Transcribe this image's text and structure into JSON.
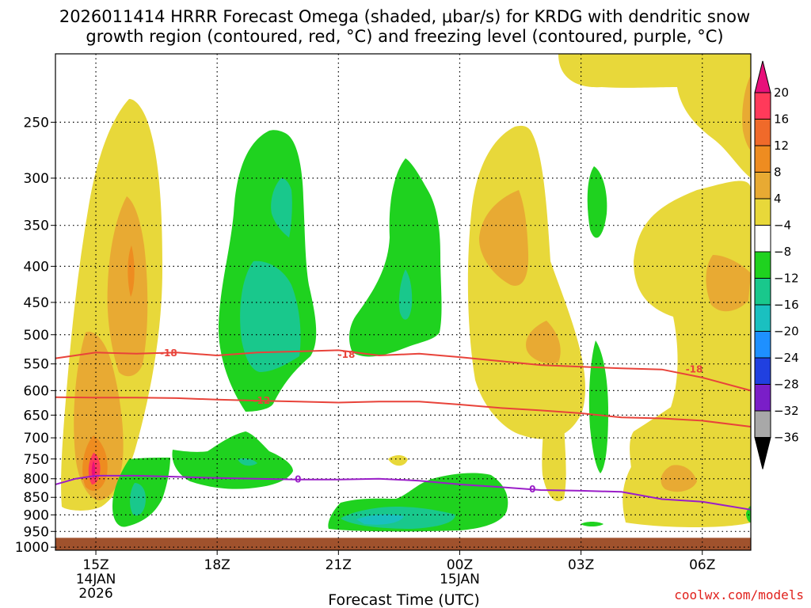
{
  "chart_data": {
    "type": "heatmap",
    "title_line1": "2026011414 HRRR Forecast Omega (shaded, μbar/s) for KRDG with dendritic snow",
    "title_line2": "growth region (contoured, red, °C) and freezing level (contoured, purple, °C)",
    "xlabel": "Forecast Time (UTC)",
    "credit": "coolwx.com/models",
    "y_axis": {
      "type": "pressure",
      "scale": "log",
      "range": [
        1010,
        200
      ],
      "ticks": [
        "250",
        "300",
        "350",
        "400",
        "450",
        "500",
        "550",
        "600",
        "650",
        "700",
        "750",
        "800",
        "850",
        "900",
        "950",
        "1000"
      ]
    },
    "x_axis": {
      "range_hours": [
        -1.0,
        16.2
      ],
      "ticks": [
        {
          "hour": 0,
          "label": "15Z",
          "sub1": "14JAN",
          "sub2": "2026"
        },
        {
          "hour": 3,
          "label": "18Z",
          "sub1": "",
          "sub2": ""
        },
        {
          "hour": 6,
          "label": "21Z",
          "sub1": "",
          "sub2": ""
        },
        {
          "hour": 9,
          "label": "00Z",
          "sub1": "15JAN",
          "sub2": ""
        },
        {
          "hour": 12,
          "label": "03Z",
          "sub1": "",
          "sub2": ""
        },
        {
          "hour": 15,
          "label": "06Z",
          "sub1": "",
          "sub2": ""
        }
      ]
    },
    "colorbar": {
      "levels": [
        20,
        16,
        12,
        8,
        4,
        -4,
        -8,
        -12,
        -16,
        -20,
        -24,
        -28,
        -32,
        -36
      ],
      "labels": [
        "20",
        "16",
        "12",
        "8",
        "4",
        "−4",
        "−8",
        "−12",
        "−16",
        "−20",
        "−24",
        "−28",
        "−32",
        "−36"
      ],
      "colors": [
        "#ff3a5a",
        "#f06a2a",
        "#ee8c20",
        "#e8aa33",
        "#e8d83a",
        "#ffffff",
        "#1fd21f",
        "#19c88c",
        "#1ac0c0",
        "#1e90ff",
        "#2040e0",
        "#7a1ec8",
        "#a010c0",
        "#a8a8a8"
      ],
      "top_color": "#e8107a",
      "bottom_color": "#000000"
    },
    "contours": [
      {
        "name": "dendritic-top -18C",
        "label": "-18",
        "color": "#e8433a",
        "points": [
          [
            -1.0,
            540
          ],
          [
            0,
            530
          ],
          [
            1,
            532
          ],
          [
            2,
            530
          ],
          [
            3,
            535
          ],
          [
            4,
            530
          ],
          [
            5,
            528
          ],
          [
            6,
            526
          ],
          [
            7,
            535
          ],
          [
            8,
            532
          ],
          [
            9,
            538
          ],
          [
            10,
            545
          ],
          [
            11,
            552
          ],
          [
            12,
            555
          ],
          [
            13,
            558
          ],
          [
            14,
            560
          ],
          [
            15,
            575
          ],
          [
            16.2,
            600
          ]
        ],
        "label_at": [
          1.8,
          531
        ]
      },
      {
        "name": "dendritic-top -18C b",
        "label": "-18",
        "color": "#e8433a",
        "points": [],
        "label_at": [
          6.2,
          534
        ]
      },
      {
        "name": "dendritic-top -18C c",
        "label": "-18",
        "color": "#e8433a",
        "points": [],
        "label_at": [
          14.8,
          560
        ]
      },
      {
        "name": "dendritic-bottom -12C",
        "label": "-12",
        "color": "#e8433a",
        "points": [
          [
            -1.0,
            613
          ],
          [
            0,
            614
          ],
          [
            1,
            614
          ],
          [
            2,
            615
          ],
          [
            3,
            618
          ],
          [
            4,
            620
          ],
          [
            5,
            622
          ],
          [
            6,
            624
          ],
          [
            7,
            622
          ],
          [
            8,
            622
          ],
          [
            9,
            628
          ],
          [
            10,
            635
          ],
          [
            11,
            640
          ],
          [
            12,
            646
          ],
          [
            13,
            655
          ],
          [
            14,
            657
          ],
          [
            15,
            662
          ],
          [
            16.2,
            675
          ]
        ],
        "label_at": [
          4.1,
          620
        ]
      },
      {
        "name": "freezing-level 0C",
        "label": "0",
        "color": "#9a1ec8",
        "points": [
          [
            -1.0,
            815
          ],
          [
            -0.5,
            800
          ],
          [
            0,
            792
          ],
          [
            1,
            792
          ],
          [
            2,
            795
          ],
          [
            3,
            798
          ],
          [
            4,
            800
          ],
          [
            5,
            802
          ],
          [
            6,
            802
          ],
          [
            7,
            800
          ],
          [
            8,
            805
          ],
          [
            9,
            815
          ],
          [
            10,
            822
          ],
          [
            11,
            830
          ],
          [
            12,
            832
          ],
          [
            13,
            835
          ],
          [
            14,
            855
          ],
          [
            15,
            862
          ],
          [
            16.2,
            885
          ]
        ],
        "label_at": [
          5.0,
          802
        ]
      },
      {
        "name": "freezing-level 0C b",
        "label": "0",
        "color": "#9a1ec8",
        "points": [],
        "label_at": [
          10.8,
          828
        ]
      }
    ],
    "ground_level_hpa": 970,
    "ground_color": "#a0522d"
  }
}
